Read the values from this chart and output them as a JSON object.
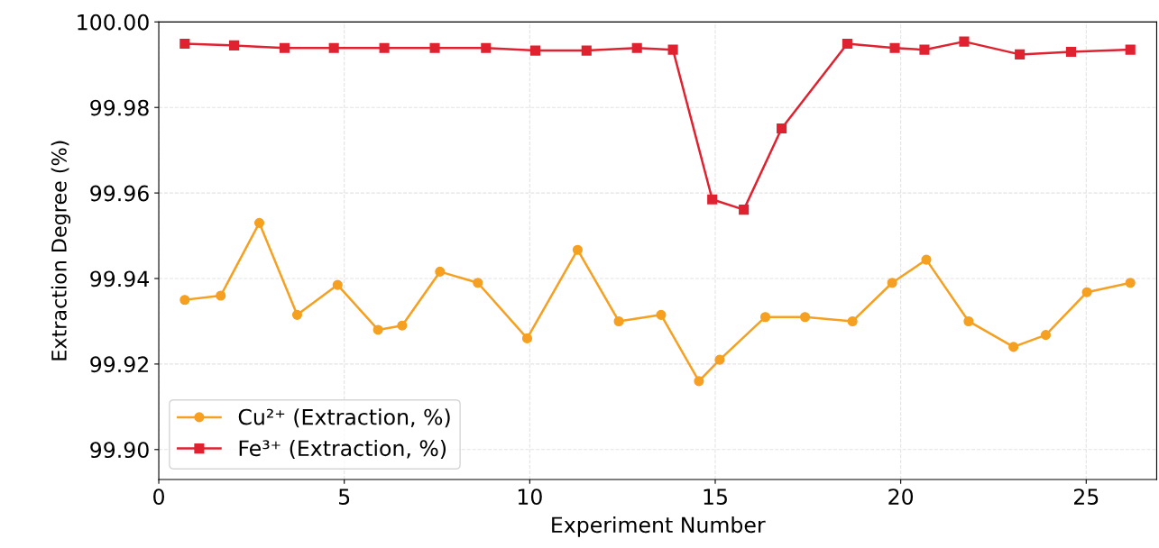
{
  "chart_data": {
    "type": "line",
    "xlabel": "Experiment Number",
    "ylabel": "Extraction Degree (%)",
    "xlim": [
      0,
      26.9
    ],
    "ylim": [
      99.893,
      100.0
    ],
    "xticks": [
      0,
      5,
      10,
      15,
      20,
      25
    ],
    "yticks": [
      {
        "value": 99.9,
        "label": "99.90"
      },
      {
        "value": 99.92,
        "label": "99.92"
      },
      {
        "value": 99.94,
        "label": "99.94"
      },
      {
        "value": 99.96,
        "label": "99.96"
      },
      {
        "value": 99.98,
        "label": "99.98"
      },
      {
        "value": 100.0,
        "label": "100.00"
      }
    ],
    "grid": true,
    "legend": "bottom left",
    "line_style": "solid",
    "series": [
      {
        "name": "Cu²⁺ (Extraction, %)",
        "color": "#f5a020",
        "marker": "circle",
        "x": [
          0.7,
          1.67,
          2.71,
          3.73,
          4.82,
          5.91,
          6.56,
          7.58,
          8.6,
          9.93,
          11.29,
          12.4,
          13.54,
          14.56,
          15.12,
          16.35,
          17.42,
          18.7,
          19.77,
          20.69,
          21.83,
          23.04,
          23.91,
          25.02,
          26.19
        ],
        "values": [
          99.935,
          99.936,
          99.953,
          99.9315,
          99.9385,
          99.928,
          99.929,
          99.9416,
          99.939,
          99.926,
          99.9467,
          99.93,
          99.9315,
          99.916,
          99.921,
          99.931,
          99.931,
          99.93,
          99.939,
          99.9444,
          99.93,
          99.924,
          99.9268,
          99.9368,
          99.939
        ]
      },
      {
        "name": "Fe³⁺ (Extraction, %)",
        "color": "#e02230",
        "marker": "square",
        "x": [
          0.7,
          2.03,
          3.39,
          4.72,
          6.08,
          7.44,
          8.82,
          10.15,
          11.53,
          12.89,
          13.86,
          14.92,
          15.77,
          16.79,
          18.56,
          19.84,
          20.64,
          21.71,
          23.21,
          24.59,
          26.19
        ],
        "values": [
          99.9949,
          99.9945,
          99.9939,
          99.9939,
          99.9939,
          99.9939,
          99.9939,
          99.9933,
          99.9933,
          99.9939,
          99.9935,
          99.9585,
          99.9561,
          99.9751,
          99.9949,
          99.9939,
          99.9935,
          99.9954,
          99.9924,
          99.993,
          99.9935
        ]
      }
    ]
  }
}
